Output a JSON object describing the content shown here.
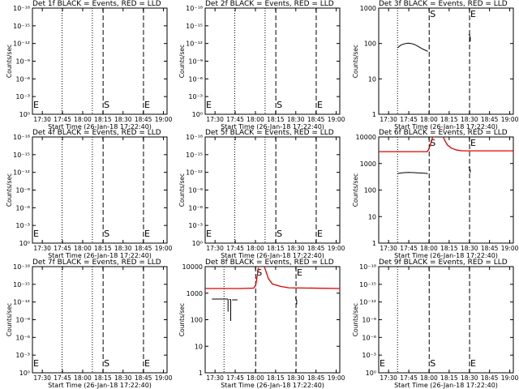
{
  "colors": {
    "events": "#000000",
    "lld": "#e00000",
    "axis": "#000000",
    "background": "#ffffff"
  },
  "time_ticks": [
    "17:30",
    "17:45",
    "18:00",
    "18:15",
    "18:30",
    "18:45",
    "19:00"
  ],
  "xlabel": "Start Time (26-Jan-18 17:22:40)",
  "ylabel": "Counts/sec",
  "chart_data": [
    {
      "type": "line",
      "title": "Det 1f BLACK = Events, RED = LLD",
      "xlabel": "Start Time (26-Jan-18 17:22:40)",
      "ylabel": "Counts/sec",
      "x_unit": "minutes after 17:22:40",
      "xlim": [
        0,
        100
      ],
      "yscale": "log",
      "ylim": [
        1,
        1e-18
      ],
      "ytick_labels": [
        "10⁰",
        "10⁻³",
        "10⁻⁶",
        "10⁻⁹",
        "10⁻¹²",
        "10⁻¹⁵",
        "10⁻¹⁸"
      ],
      "dotted_lines_x": [
        22,
        44.5
      ],
      "markers": [
        {
          "label": "E",
          "x": 0
        },
        {
          "label": "S",
          "x": 52.5
        },
        {
          "label": "E",
          "x": 82.5
        }
      ],
      "series": []
    },
    {
      "type": "line",
      "title": "Det 2f BLACK = Events, RED = LLD",
      "xlabel": "Start Time (26-Jan-18 17:22:40)",
      "ylabel": "Counts/sec",
      "x_unit": "minutes after 17:22:40",
      "xlim": [
        0,
        100
      ],
      "yscale": "log",
      "ylim": [
        1,
        1e-18
      ],
      "ytick_labels": [
        "10⁰",
        "10⁻³",
        "10⁻⁶",
        "10⁻⁹",
        "10⁻¹²",
        "10⁻¹⁵",
        "10⁻¹⁸"
      ],
      "dotted_lines_x": [
        22,
        44.5
      ],
      "markers": [
        {
          "label": "E",
          "x": 0
        },
        {
          "label": "S",
          "x": 52.5
        },
        {
          "label": "E",
          "x": 82.5
        }
      ],
      "series": []
    },
    {
      "type": "line",
      "title": "Det 3f BLACK = Events, RED = LLD",
      "xlabel": "Start Time (26-Jan-18 17:22:40)",
      "ylabel": "Counts/sec",
      "x_unit": "minutes after 17:22:40",
      "xlim": [
        0,
        100
      ],
      "yscale": "log",
      "ylim": [
        1,
        1000
      ],
      "ytick_labels": [
        "1",
        "10",
        "100",
        "1000"
      ],
      "dotted_lines_x": [
        14
      ],
      "markers": [
        {
          "label": "S",
          "x": 37.5
        },
        {
          "label": "E",
          "x": 67.5
        }
      ],
      "series": [
        {
          "color": "events",
          "segments": [
            [
              [
                14,
                75
              ],
              [
                16,
                88
              ],
              [
                18,
                95
              ],
              [
                20,
                100
              ],
              [
                22,
                102
              ],
              [
                24,
                100
              ],
              [
                26,
                95
              ],
              [
                28,
                88
              ],
              [
                30,
                80
              ],
              [
                32,
                72
              ],
              [
                34,
                66
              ],
              [
                36.5,
                60
              ]
            ],
            [
              [
                67,
                185
              ],
              [
                67.5,
                170
              ],
              [
                68,
                150
              ]
            ],
            [
              [
                68,
                150
              ],
              [
                68,
                115
              ]
            ]
          ]
        }
      ]
    },
    {
      "type": "line",
      "title": "Det 4f BLACK = Events, RED = LLD",
      "xlabel": "Start Time (26-Jan-18 17:22:40)",
      "ylabel": "Counts/sec",
      "x_unit": "minutes after 17:22:40",
      "xlim": [
        0,
        100
      ],
      "yscale": "log",
      "ylim": [
        1,
        1e-18
      ],
      "ytick_labels": [
        "10⁰",
        "10⁻³",
        "10⁻⁶",
        "10⁻⁹",
        "10⁻¹²",
        "10⁻¹⁵",
        "10⁻¹⁸"
      ],
      "dotted_lines_x": [
        22,
        44.5
      ],
      "markers": [
        {
          "label": "E",
          "x": 0
        },
        {
          "label": "S",
          "x": 52.5
        },
        {
          "label": "E",
          "x": 82.5
        }
      ],
      "series": []
    },
    {
      "type": "line",
      "title": "Det 5f BLACK = Events, RED = LLD",
      "xlabel": "Start Time (26-Jan-18 17:22:40)",
      "ylabel": "Counts/sec",
      "x_unit": "minutes after 17:22:40",
      "xlim": [
        0,
        100
      ],
      "yscale": "log",
      "ylim": [
        1,
        1e-18
      ],
      "ytick_labels": [
        "10⁰",
        "10⁻³",
        "10⁻⁶",
        "10⁻⁹",
        "10⁻¹²",
        "10⁻¹⁵",
        "10⁻¹⁸"
      ],
      "dotted_lines_x": [
        22,
        44.5
      ],
      "markers": [
        {
          "label": "E",
          "x": 0
        },
        {
          "label": "S",
          "x": 52.5
        },
        {
          "label": "E",
          "x": 82.5
        }
      ],
      "series": []
    },
    {
      "type": "line",
      "title": "Det 6f BLACK = Events, RED = LLD",
      "xlabel": "Start Time (26-Jan-18 17:22:40)",
      "ylabel": "Counts/sec",
      "x_unit": "minutes after 17:22:40",
      "xlim": [
        0,
        100
      ],
      "yscale": "log",
      "ylim": [
        1,
        10000
      ],
      "ytick_labels": [
        "1",
        "10",
        "100",
        "1000",
        "10000"
      ],
      "dotted_lines_x": [
        14
      ],
      "markers": [
        {
          "label": "S",
          "x": 37.5
        },
        {
          "label": "E",
          "x": 67.5
        }
      ],
      "series": [
        {
          "color": "lld",
          "segments": [
            [
              [
                0,
                2800
              ],
              [
                36,
                2800
              ],
              [
                37,
                3300
              ],
              [
                38,
                4500
              ],
              [
                39,
                6500
              ],
              [
                40,
                9500
              ]
            ],
            [
              [
                48,
                10000
              ],
              [
                49,
                7500
              ],
              [
                51,
                5000
              ],
              [
                54,
                3800
              ],
              [
                58,
                3200
              ],
              [
                62,
                3000
              ],
              [
                100,
                3000
              ]
            ]
          ]
        },
        {
          "color": "events",
          "segments": [
            [
              [
                14,
                420
              ],
              [
                18,
                450
              ],
              [
                22,
                460
              ],
              [
                26,
                455
              ],
              [
                30,
                440
              ],
              [
                34,
                430
              ],
              [
                36.5,
                420
              ]
            ],
            [
              [
                67,
                750
              ],
              [
                67.5,
                650
              ],
              [
                68,
                560
              ]
            ],
            [
              [
                68,
                560
              ],
              [
                68,
                450
              ]
            ]
          ]
        }
      ]
    },
    {
      "type": "line",
      "title": "Det 7f BLACK = Events, RED = LLD",
      "xlabel": "Start Time (26-Jan-18 17:22:40)",
      "ylabel": "Counts/sec",
      "x_unit": "minutes after 17:22:40",
      "xlim": [
        0,
        100
      ],
      "yscale": "log",
      "ylim": [
        1,
        1e-18
      ],
      "ytick_labels": [
        "10⁰",
        "10⁻³",
        "10⁻⁶",
        "10⁻⁹",
        "10⁻¹²",
        "10⁻¹⁵",
        "10⁻¹⁸"
      ],
      "dotted_lines_x": [
        22,
        44.5
      ],
      "markers": [
        {
          "label": "E",
          "x": 0
        },
        {
          "label": "S",
          "x": 52.5
        },
        {
          "label": "E",
          "x": 82.5
        }
      ],
      "series": []
    },
    {
      "type": "line",
      "title": "Det 8f BLACK = Events, RED = LLD",
      "xlabel": "Start Time (26-Jan-18 17:22:40)",
      "ylabel": "Counts/sec",
      "x_unit": "minutes after 17:22:40",
      "xlim": [
        0,
        100
      ],
      "yscale": "log",
      "ylim": [
        1,
        10000
      ],
      "ytick_labels": [
        "1",
        "10",
        "100",
        "1000",
        "10000"
      ],
      "dotted_lines_x": [
        14
      ],
      "markers": [
        {
          "label": "S",
          "x": 37.5
        },
        {
          "label": "E",
          "x": 67.5
        }
      ],
      "series": [
        {
          "color": "lld",
          "segments": [
            [
              [
                0,
                1500
              ],
              [
                26,
                1500
              ],
              [
                36,
                1550
              ],
              [
                37.5,
                2000
              ],
              [
                38.5,
                4000
              ],
              [
                39.5,
                9000
              ]
            ],
            [
              [
                44,
                10000
              ],
              [
                45,
                7000
              ],
              [
                47,
                3500
              ],
              [
                50,
                2200
              ],
              [
                56,
                1800
              ],
              [
                62,
                1600
              ],
              [
                100,
                1500
              ]
            ]
          ]
        },
        {
          "color": "events",
          "segments": [
            [
              [
                5,
                600
              ],
              [
                17,
                600
              ]
            ],
            [
              [
                17,
                600
              ],
              [
                17,
                200
              ]
            ],
            [
              [
                18,
                580
              ],
              [
                19,
                580
              ]
            ],
            [
              [
                19,
                580
              ],
              [
                19,
                90
              ]
            ],
            [
              [
                20,
                560
              ],
              [
                24,
                560
              ]
            ],
            [
              [
                67,
                700
              ],
              [
                67.5,
                600
              ],
              [
                68,
                530
              ]
            ],
            [
              [
                68,
                530
              ],
              [
                68,
                380
              ]
            ]
          ]
        }
      ]
    },
    {
      "type": "line",
      "title": "Det 9f BLACK = Events, RED = LLD",
      "xlabel": "Start Time (26-Jan-18 17:22:40)",
      "ylabel": "Counts/sec",
      "x_unit": "minutes after 17:22:40",
      "xlim": [
        0,
        100
      ],
      "yscale": "log",
      "ylim": [
        1,
        1e-18
      ],
      "ytick_labels": [
        "10⁰",
        "10⁻³",
        "10⁻⁶",
        "10⁻⁹",
        "10⁻¹²",
        "10⁻¹⁵",
        "10⁻¹⁸"
      ],
      "dotted_lines_x": [
        14
      ],
      "markers": [
        {
          "label": "E",
          "x": 0
        },
        {
          "label": "S",
          "x": 37.5
        },
        {
          "label": "E",
          "x": 67.5
        }
      ],
      "series": []
    }
  ]
}
